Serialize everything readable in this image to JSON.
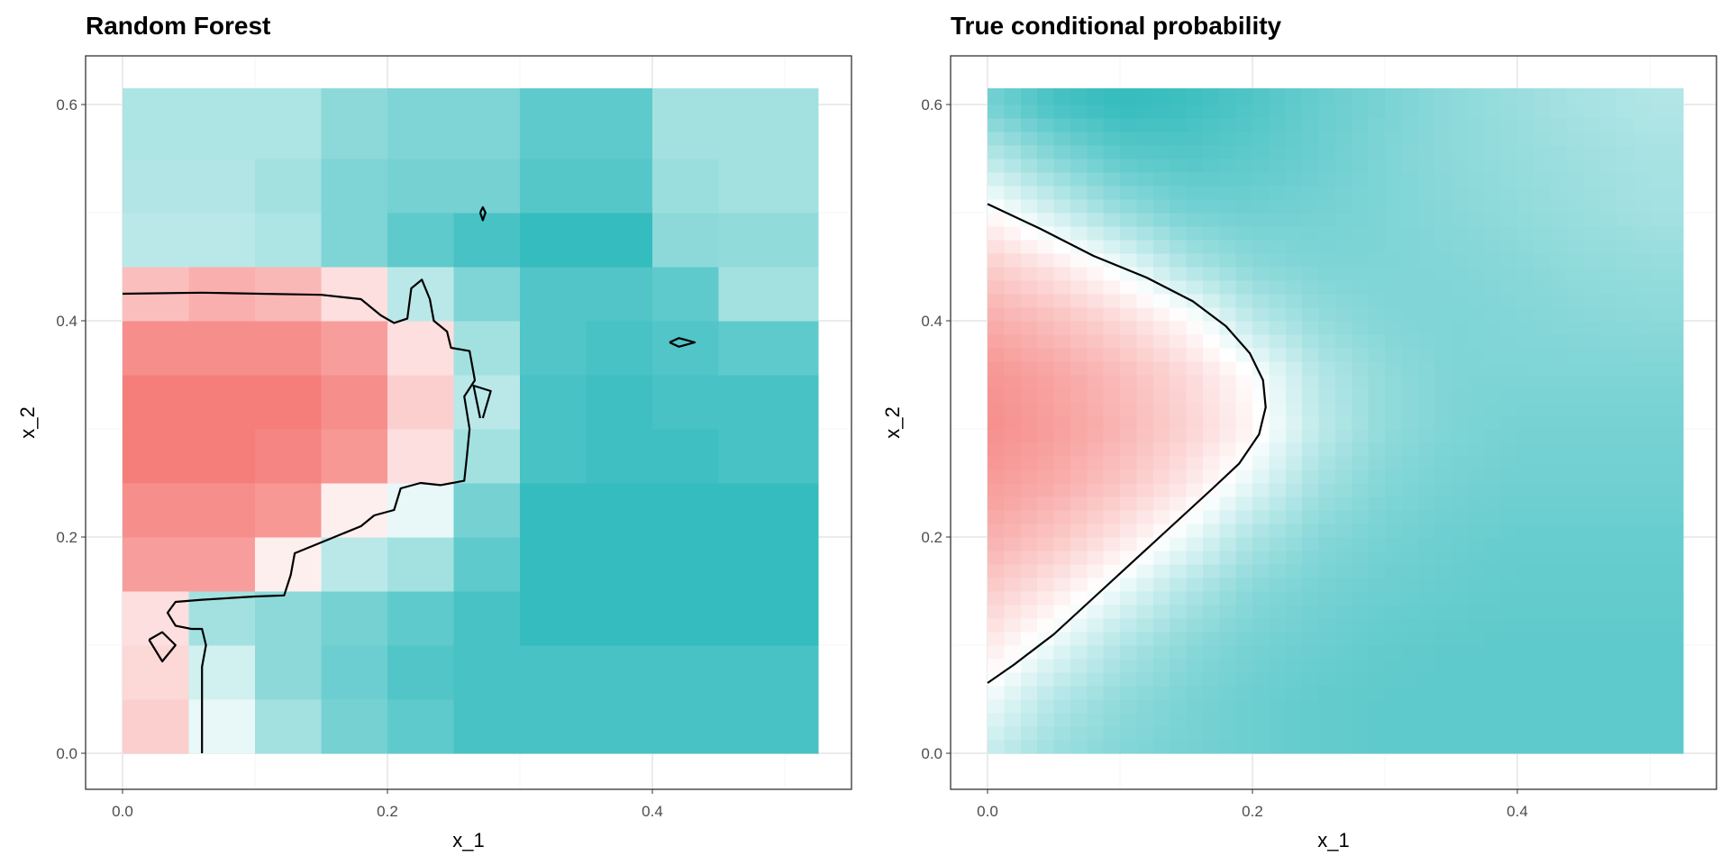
{
  "chart_data": [
    {
      "type": "heatmap",
      "title": "Random Forest",
      "xlabel": "x_1",
      "ylabel": "x_2",
      "xlim": [
        -0.05,
        0.56
      ],
      "ylim": [
        -0.03,
        0.645
      ],
      "xticks": [
        "0.0",
        "0.2",
        "0.4"
      ],
      "xtick_values": [
        0,
        0.2,
        0.4
      ],
      "yticks": [
        "0.0",
        "0.2",
        "0.4",
        "0.6"
      ],
      "ytick_values": [
        0,
        0.2,
        0.4,
        0.6
      ],
      "grid": true,
      "render": "blocks",
      "x_edges": [
        0,
        0.05,
        0.1,
        0.15,
        0.2,
        0.25,
        0.3,
        0.35,
        0.4,
        0.45,
        0.5,
        0.525
      ],
      "y_edges": [
        0,
        0.05,
        0.1,
        0.15,
        0.2,
        0.25,
        0.3,
        0.35,
        0.4,
        0.45,
        0.5,
        0.55,
        0.6,
        0.615
      ],
      "values_bottom_to_top": [
        [
          0.65,
          0.45,
          0.3,
          0.2,
          0.15,
          0.1,
          0.1,
          0.1,
          0.1,
          0.1,
          0.1
        ],
        [
          0.62,
          0.4,
          0.25,
          0.18,
          0.12,
          0.1,
          0.1,
          0.1,
          0.1,
          0.1,
          0.1
        ],
        [
          0.6,
          0.3,
          0.25,
          0.2,
          0.15,
          0.1,
          0.06,
          0.06,
          0.06,
          0.06,
          0.06
        ],
        [
          0.8,
          0.8,
          0.55,
          0.35,
          0.3,
          0.15,
          0.06,
          0.06,
          0.06,
          0.06,
          0.06
        ],
        [
          0.85,
          0.85,
          0.82,
          0.55,
          0.45,
          0.2,
          0.06,
          0.06,
          0.06,
          0.06,
          0.06
        ],
        [
          0.9,
          0.9,
          0.88,
          0.82,
          0.6,
          0.3,
          0.1,
          0.08,
          0.08,
          0.1,
          0.1
        ],
        [
          0.9,
          0.9,
          0.9,
          0.85,
          0.65,
          0.35,
          0.1,
          0.08,
          0.1,
          0.1,
          0.1
        ],
        [
          0.85,
          0.85,
          0.85,
          0.8,
          0.6,
          0.3,
          0.12,
          0.1,
          0.12,
          0.15,
          0.15
        ],
        [
          0.7,
          0.75,
          0.72,
          0.6,
          0.35,
          0.22,
          0.12,
          0.12,
          0.15,
          0.3,
          0.3
        ],
        [
          0.35,
          0.35,
          0.32,
          0.22,
          0.15,
          0.1,
          0.06,
          0.06,
          0.25,
          0.26,
          0.26
        ],
        [
          0.33,
          0.33,
          0.3,
          0.22,
          0.2,
          0.2,
          0.13,
          0.13,
          0.28,
          0.3,
          0.3
        ],
        [
          0.32,
          0.32,
          0.32,
          0.25,
          0.22,
          0.22,
          0.15,
          0.15,
          0.3,
          0.3,
          0.3
        ],
        [
          0.32,
          0.32,
          0.32,
          0.25,
          0.22,
          0.22,
          0.15,
          0.15,
          0.3,
          0.3,
          0.3
        ]
      ],
      "contours": [
        [
          [
            0,
            0.425
          ],
          [
            0.06,
            0.426
          ],
          [
            0.15,
            0.424
          ],
          [
            0.18,
            0.42
          ],
          [
            0.195,
            0.405
          ],
          [
            0.205,
            0.398
          ],
          [
            0.215,
            0.402
          ],
          [
            0.218,
            0.43
          ],
          [
            0.226,
            0.438
          ],
          [
            0.232,
            0.42
          ],
          [
            0.235,
            0.4
          ],
          [
            0.245,
            0.39
          ],
          [
            0.248,
            0.375
          ],
          [
            0.262,
            0.372
          ],
          [
            0.266,
            0.345
          ],
          [
            0.258,
            0.33
          ],
          [
            0.262,
            0.3
          ],
          [
            0.26,
            0.275
          ],
          [
            0.258,
            0.252
          ],
          [
            0.24,
            0.248
          ],
          [
            0.225,
            0.25
          ],
          [
            0.21,
            0.245
          ],
          [
            0.205,
            0.225
          ],
          [
            0.19,
            0.22
          ],
          [
            0.18,
            0.21
          ],
          [
            0.16,
            0.2
          ],
          [
            0.14,
            0.19
          ],
          [
            0.13,
            0.185
          ],
          [
            0.127,
            0.165
          ],
          [
            0.122,
            0.146
          ],
          [
            0.1,
            0.145
          ],
          [
            0.06,
            0.142
          ],
          [
            0.04,
            0.14
          ],
          [
            0.034,
            0.13
          ],
          [
            0.04,
            0.118
          ],
          [
            0.052,
            0.115
          ],
          [
            0.06,
            0.115
          ],
          [
            0.063,
            0.1
          ],
          [
            0.06,
            0.08
          ],
          [
            0.06,
            0.0
          ]
        ],
        [
          [
            0.413,
            0.38
          ],
          [
            0.42,
            0.384
          ],
          [
            0.432,
            0.38
          ],
          [
            0.42,
            0.376
          ],
          [
            0.413,
            0.38
          ]
        ],
        [
          [
            0.27,
            0.5
          ],
          [
            0.272,
            0.505
          ],
          [
            0.274,
            0.5
          ],
          [
            0.272,
            0.493
          ],
          [
            0.27,
            0.5
          ]
        ],
        [
          [
            0.272,
            0.31
          ],
          [
            0.278,
            0.335
          ],
          [
            0.265,
            0.34
          ],
          [
            0.27,
            0.31
          ]
        ],
        [
          [
            0.02,
            0.105
          ],
          [
            0.03,
            0.112
          ],
          [
            0.04,
            0.1
          ],
          [
            0.03,
            0.085
          ],
          [
            0.02,
            0.105
          ]
        ]
      ]
    },
    {
      "type": "heatmap",
      "title": "True conditional probability",
      "xlabel": "x_1",
      "ylabel": "x_2",
      "xlim": [
        -0.05,
        0.56
      ],
      "ylim": [
        -0.03,
        0.645
      ],
      "xticks": [
        "0.0",
        "0.2",
        "0.4"
      ],
      "xtick_values": [
        0,
        0.2,
        0.4
      ],
      "yticks": [
        "0.0",
        "0.2",
        "0.4",
        "0.6"
      ],
      "ytick_values": [
        0,
        0.2,
        0.4,
        0.6
      ],
      "grid": true,
      "render": "smooth",
      "x_points": [
        0,
        0.05,
        0.1,
        0.15,
        0.2,
        0.25,
        0.3,
        0.35,
        0.4,
        0.45,
        0.5
      ],
      "y_points": [
        0,
        0.05,
        0.1,
        0.15,
        0.2,
        0.25,
        0.3,
        0.35,
        0.4,
        0.45,
        0.5,
        0.55,
        0.6
      ],
      "x_extent": [
        0,
        0.525
      ],
      "y_extent": [
        0,
        0.615
      ],
      "values_bottom_to_top": [
        [
          0.38,
          0.28,
          0.23,
          0.2,
          0.18,
          0.16,
          0.15,
          0.15,
          0.15,
          0.15,
          0.15
        ],
        [
          0.47,
          0.34,
          0.26,
          0.21,
          0.18,
          0.16,
          0.15,
          0.15,
          0.15,
          0.15,
          0.15
        ],
        [
          0.57,
          0.45,
          0.33,
          0.25,
          0.2,
          0.18,
          0.16,
          0.15,
          0.15,
          0.15,
          0.15
        ],
        [
          0.66,
          0.57,
          0.45,
          0.33,
          0.24,
          0.2,
          0.18,
          0.17,
          0.16,
          0.16,
          0.16
        ],
        [
          0.75,
          0.68,
          0.58,
          0.46,
          0.32,
          0.24,
          0.2,
          0.18,
          0.17,
          0.17,
          0.17
        ],
        [
          0.81,
          0.76,
          0.68,
          0.58,
          0.44,
          0.3,
          0.23,
          0.2,
          0.19,
          0.19,
          0.19
        ],
        [
          0.85,
          0.8,
          0.73,
          0.64,
          0.53,
          0.36,
          0.26,
          0.22,
          0.2,
          0.2,
          0.2
        ],
        [
          0.83,
          0.78,
          0.71,
          0.62,
          0.5,
          0.34,
          0.26,
          0.22,
          0.22,
          0.22,
          0.22
        ],
        [
          0.76,
          0.7,
          0.62,
          0.52,
          0.36,
          0.27,
          0.23,
          0.22,
          0.23,
          0.24,
          0.25
        ],
        [
          0.66,
          0.58,
          0.47,
          0.33,
          0.25,
          0.22,
          0.22,
          0.23,
          0.24,
          0.26,
          0.27
        ],
        [
          0.52,
          0.4,
          0.28,
          0.2,
          0.19,
          0.2,
          0.22,
          0.24,
          0.26,
          0.28,
          0.3
        ],
        [
          0.36,
          0.24,
          0.15,
          0.13,
          0.15,
          0.18,
          0.22,
          0.25,
          0.27,
          0.29,
          0.31
        ],
        [
          0.2,
          0.1,
          0.06,
          0.08,
          0.12,
          0.17,
          0.21,
          0.25,
          0.28,
          0.31,
          0.33
        ]
      ],
      "contours": [
        [
          [
            0,
            0.508
          ],
          [
            0.04,
            0.485
          ],
          [
            0.08,
            0.46
          ],
          [
            0.12,
            0.44
          ],
          [
            0.155,
            0.418
          ],
          [
            0.18,
            0.395
          ],
          [
            0.198,
            0.37
          ],
          [
            0.208,
            0.345
          ],
          [
            0.21,
            0.32
          ],
          [
            0.205,
            0.295
          ],
          [
            0.19,
            0.268
          ],
          [
            0.17,
            0.245
          ],
          [
            0.13,
            0.2
          ],
          [
            0.09,
            0.155
          ],
          [
            0.05,
            0.11
          ],
          [
            0.02,
            0.082
          ],
          [
            0,
            0.065
          ]
        ]
      ]
    }
  ],
  "colors": {
    "low": "#1AB3B5",
    "mid": "#FFFFFF",
    "high": "#F25E5A",
    "contour": "#000000",
    "grid_major": "#EBEBEB",
    "grid_minor": "#F4F4F4",
    "panel_border": "#333333"
  }
}
